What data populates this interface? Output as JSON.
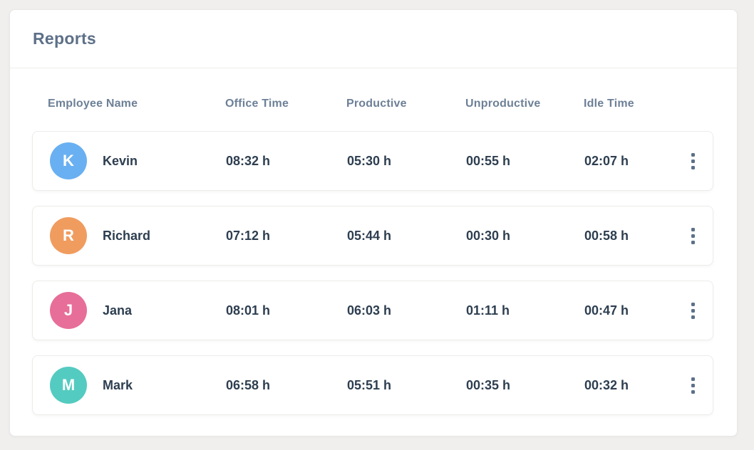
{
  "header": {
    "title": "Reports"
  },
  "table": {
    "columns": [
      "Employee Name",
      "Office Time",
      "Productive",
      "Unproductive",
      "Idle Time"
    ],
    "rows": [
      {
        "initial": "K",
        "name": "Kevin",
        "avatar_color": "#69b0f2",
        "office_time": "08:32 h",
        "productive": "05:30 h",
        "unproductive": "00:55 h",
        "idle_time": "02:07 h"
      },
      {
        "initial": "R",
        "name": "Richard",
        "avatar_color": "#f09c5f",
        "office_time": "07:12 h",
        "productive": "05:44 h",
        "unproductive": "00:30 h",
        "idle_time": "00:58 h"
      },
      {
        "initial": "J",
        "name": "Jana",
        "avatar_color": "#e76e98",
        "office_time": "08:01 h",
        "productive": "06:03 h",
        "unproductive": "01:11 h",
        "idle_time": "00:47 h"
      },
      {
        "initial": "M",
        "name": "Mark",
        "avatar_color": "#54cbc0",
        "office_time": "06:58 h",
        "productive": "05:51 h",
        "unproductive": "00:35 h",
        "idle_time": "00:32 h"
      }
    ],
    "row_menu_icon": "kebab-menu"
  },
  "colors": {
    "page_background": "#f0efee",
    "card_background": "#ffffff",
    "title_text": "#5d7088",
    "column_header_text": "#6d8097",
    "cell_text": "#2d3e50",
    "kebab_dots": "#5c7089"
  }
}
